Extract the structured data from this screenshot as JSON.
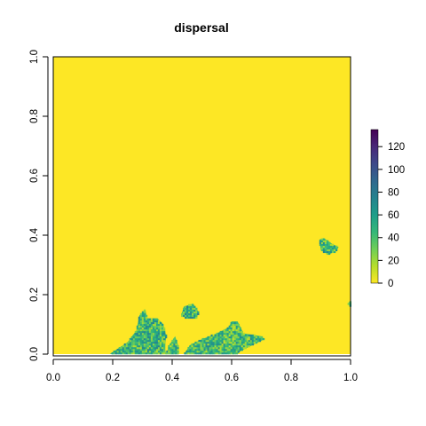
{
  "chart_data": {
    "type": "heatmap",
    "title": "dispersal",
    "xlabel": "",
    "ylabel": "",
    "xlim": [
      0.0,
      1.0
    ],
    "ylim": [
      0.0,
      1.0
    ],
    "x_ticks": [
      "0.0",
      "0.2",
      "0.4",
      "0.6",
      "0.8",
      "1.0"
    ],
    "y_ticks": [
      "0.0",
      "0.2",
      "0.4",
      "0.6",
      "0.8",
      "1.0"
    ],
    "legend": {
      "placement": "right",
      "min": 0,
      "max": 135,
      "ticks": [
        "0",
        "20",
        "40",
        "60",
        "80",
        "100",
        "120"
      ],
      "colormap": "viridis",
      "stops": [
        "#fde725",
        "#b5de2b",
        "#6ece58",
        "#35b779",
        "#1f9e89",
        "#26828e",
        "#31688e",
        "#3e4989",
        "#482878",
        "#440154"
      ]
    },
    "background_value": 0,
    "background_color": "#fde725",
    "patches": [
      {
        "name": "patch-bottom-left",
        "poly": [
          [
            0.19,
            0.0
          ],
          [
            0.22,
            0.02
          ],
          [
            0.25,
            0.04
          ],
          [
            0.28,
            0.08
          ],
          [
            0.29,
            0.13
          ],
          [
            0.31,
            0.15
          ],
          [
            0.315,
            0.12
          ],
          [
            0.35,
            0.12
          ],
          [
            0.37,
            0.1
          ],
          [
            0.38,
            0.06
          ],
          [
            0.375,
            0.02
          ],
          [
            0.38,
            0.0
          ]
        ],
        "mean_value": 45
      },
      {
        "name": "patch-small-center",
        "poly": [
          [
            0.38,
            0.0
          ],
          [
            0.39,
            0.03
          ],
          [
            0.41,
            0.06
          ],
          [
            0.42,
            0.03
          ],
          [
            0.42,
            0.0
          ]
        ],
        "mean_value": 40
      },
      {
        "name": "patch-upper-center",
        "poly": [
          [
            0.43,
            0.13
          ],
          [
            0.44,
            0.16
          ],
          [
            0.47,
            0.17
          ],
          [
            0.49,
            0.14
          ],
          [
            0.48,
            0.12
          ],
          [
            0.45,
            0.12
          ]
        ],
        "mean_value": 50
      },
      {
        "name": "patch-bottom-center",
        "poly": [
          [
            0.44,
            0.0
          ],
          [
            0.46,
            0.03
          ],
          [
            0.5,
            0.05
          ],
          [
            0.55,
            0.07
          ],
          [
            0.59,
            0.09
          ],
          [
            0.6,
            0.11
          ],
          [
            0.62,
            0.11
          ],
          [
            0.64,
            0.07
          ],
          [
            0.7,
            0.06
          ],
          [
            0.71,
            0.05
          ],
          [
            0.67,
            0.03
          ],
          [
            0.63,
            0.01
          ],
          [
            0.62,
            0.0
          ]
        ],
        "mean_value": 42
      },
      {
        "name": "patch-right",
        "poly": [
          [
            0.895,
            0.385
          ],
          [
            0.91,
            0.39
          ],
          [
            0.94,
            0.37
          ],
          [
            0.96,
            0.36
          ],
          [
            0.95,
            0.345
          ],
          [
            0.925,
            0.335
          ],
          [
            0.9,
            0.35
          ]
        ],
        "mean_value": 45
      },
      {
        "name": "patch-edge",
        "poly": [
          [
            0.99,
            0.17
          ],
          [
            1.0,
            0.18
          ],
          [
            1.0,
            0.16
          ]
        ],
        "mean_value": 35
      }
    ]
  }
}
